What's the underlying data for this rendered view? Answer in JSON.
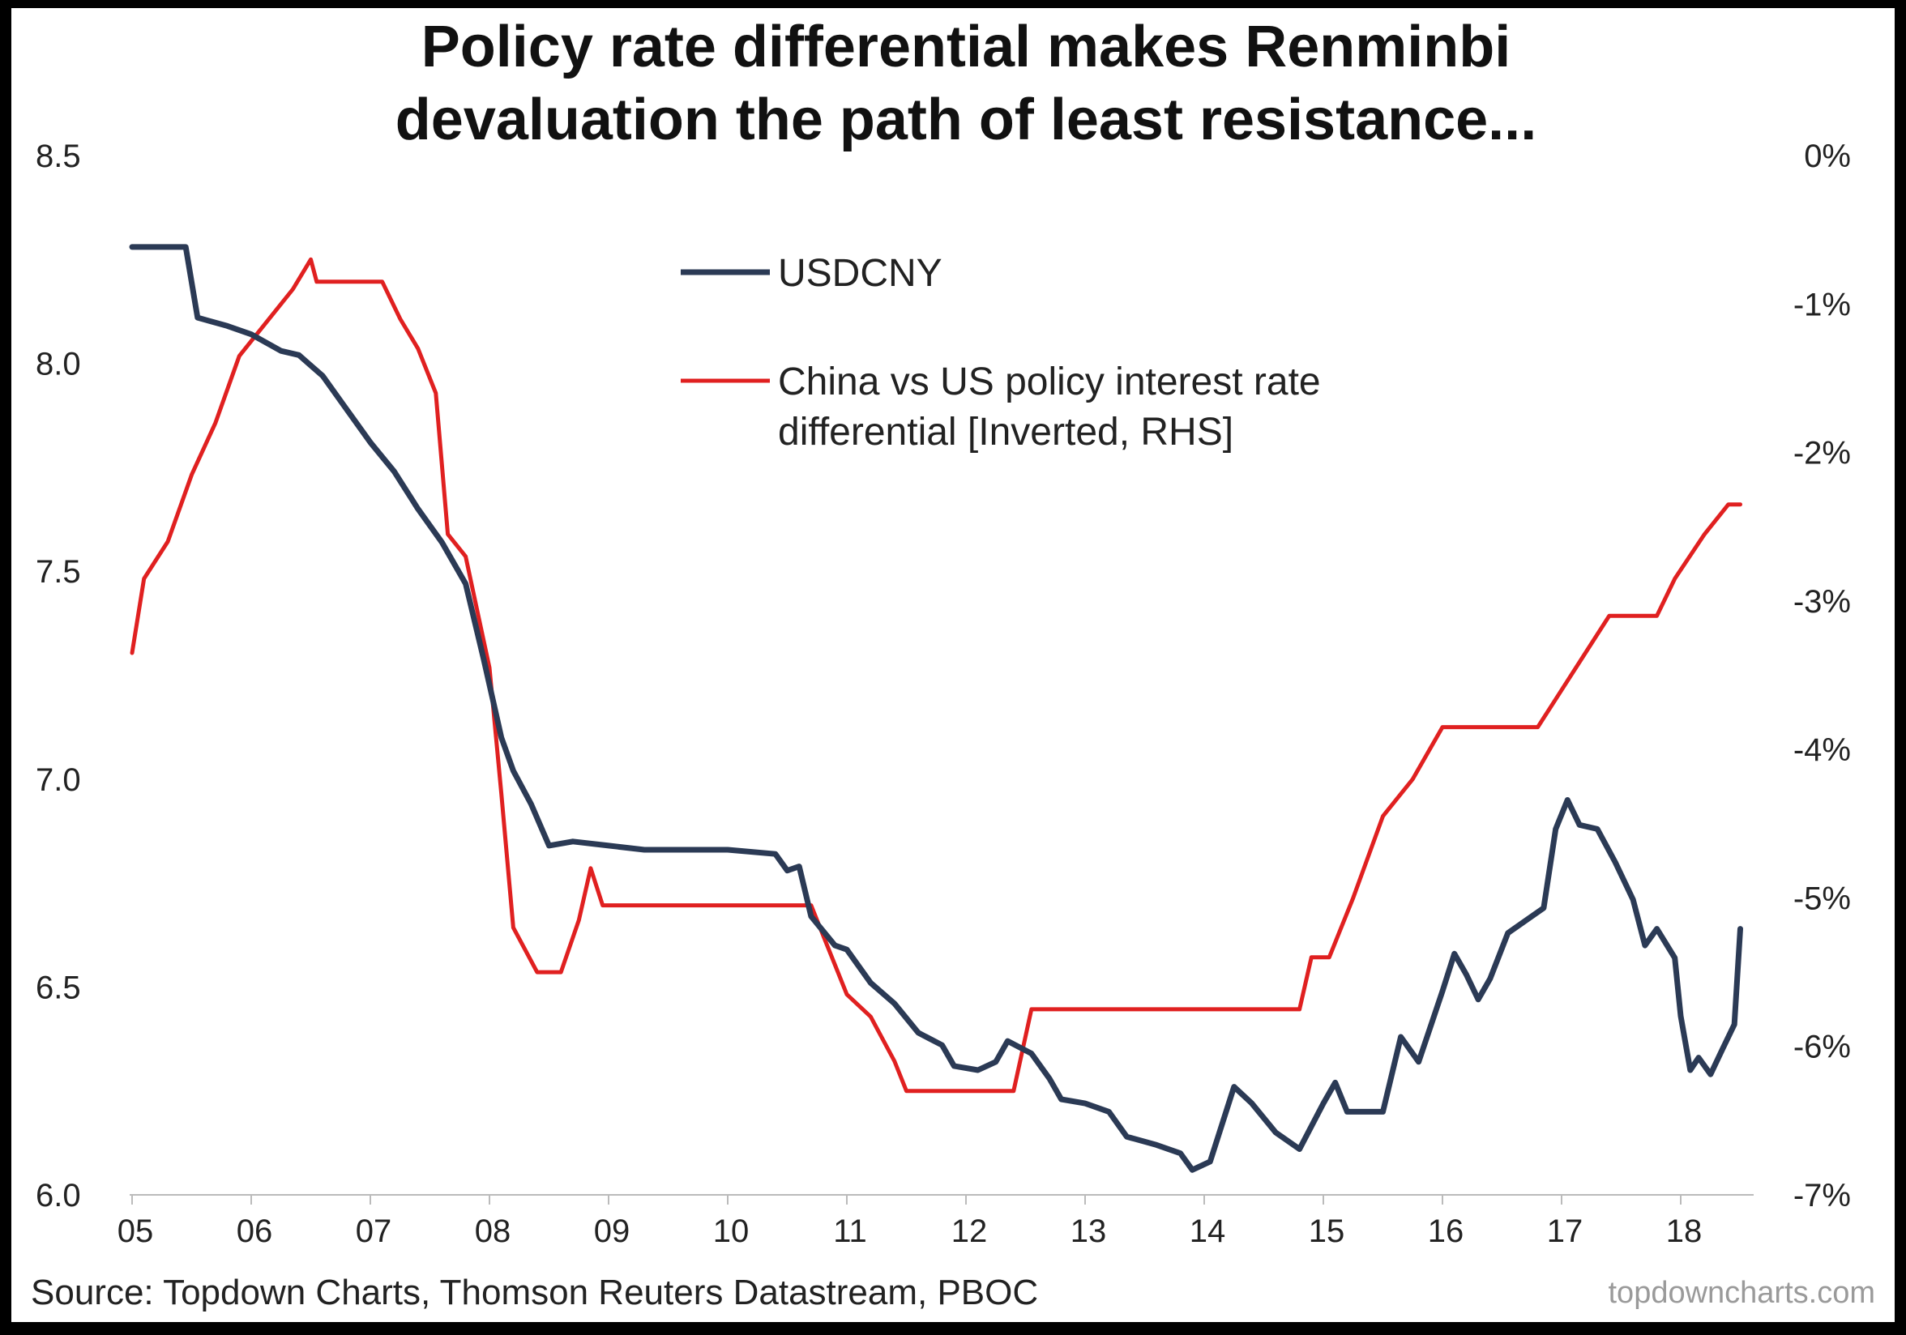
{
  "chart_data": {
    "type": "line",
    "title_lines": [
      "Policy rate differential makes Renminbi",
      "devaluation the path of least resistance..."
    ],
    "x_ticks": [
      "05",
      "06",
      "07",
      "08",
      "09",
      "10",
      "11",
      "12",
      "13",
      "14",
      "15",
      "16",
      "17",
      "18"
    ],
    "x_range": [
      2005,
      2018.55
    ],
    "y_left": {
      "range": [
        6.0,
        8.5
      ],
      "ticks": [
        "6.0",
        "6.5",
        "7.0",
        "7.5",
        "8.0",
        "8.5"
      ],
      "tick_values": [
        6.0,
        6.5,
        7.0,
        7.5,
        8.0,
        8.5
      ]
    },
    "y_right": {
      "range": [
        -7,
        0
      ],
      "inverted": true,
      "ticks": [
        "0%",
        "-1%",
        "-2%",
        "-3%",
        "-4%",
        "-5%",
        "-6%",
        "-7%"
      ],
      "tick_values": [
        0,
        -1,
        -2,
        -3,
        -4,
        -5,
        -6,
        -7
      ]
    },
    "legend_placement": "top-center",
    "grid": false,
    "series": [
      {
        "name": "USDCNY",
        "axis": "left",
        "color": "#2b3a55",
        "points": [
          [
            2005.0,
            8.28
          ],
          [
            2005.25,
            8.28
          ],
          [
            2005.45,
            8.28
          ],
          [
            2005.55,
            8.11
          ],
          [
            2005.8,
            8.09
          ],
          [
            2006.0,
            8.07
          ],
          [
            2006.25,
            8.03
          ],
          [
            2006.4,
            8.02
          ],
          [
            2006.6,
            7.97
          ],
          [
            2006.8,
            7.89
          ],
          [
            2007.0,
            7.81
          ],
          [
            2007.2,
            7.74
          ],
          [
            2007.4,
            7.65
          ],
          [
            2007.6,
            7.57
          ],
          [
            2007.8,
            7.47
          ],
          [
            2007.95,
            7.29
          ],
          [
            2008.1,
            7.1
          ],
          [
            2008.2,
            7.02
          ],
          [
            2008.35,
            6.94
          ],
          [
            2008.5,
            6.84
          ],
          [
            2008.7,
            6.85
          ],
          [
            2009.0,
            6.84
          ],
          [
            2009.3,
            6.83
          ],
          [
            2009.6,
            6.83
          ],
          [
            2010.0,
            6.83
          ],
          [
            2010.4,
            6.82
          ],
          [
            2010.5,
            6.78
          ],
          [
            2010.6,
            6.79
          ],
          [
            2010.7,
            6.67
          ],
          [
            2010.9,
            6.6
          ],
          [
            2011.0,
            6.59
          ],
          [
            2011.2,
            6.51
          ],
          [
            2011.4,
            6.46
          ],
          [
            2011.6,
            6.39
          ],
          [
            2011.8,
            6.36
          ],
          [
            2011.9,
            6.31
          ],
          [
            2012.1,
            6.3
          ],
          [
            2012.25,
            6.32
          ],
          [
            2012.35,
            6.37
          ],
          [
            2012.55,
            6.34
          ],
          [
            2012.7,
            6.28
          ],
          [
            2012.8,
            6.23
          ],
          [
            2013.0,
            6.22
          ],
          [
            2013.2,
            6.2
          ],
          [
            2013.35,
            6.14
          ],
          [
            2013.6,
            6.12
          ],
          [
            2013.8,
            6.1
          ],
          [
            2013.9,
            6.06
          ],
          [
            2014.05,
            6.08
          ],
          [
            2014.25,
            6.26
          ],
          [
            2014.4,
            6.22
          ],
          [
            2014.6,
            6.15
          ],
          [
            2014.8,
            6.11
          ],
          [
            2015.0,
            6.22
          ],
          [
            2015.1,
            6.27
          ],
          [
            2015.2,
            6.2
          ],
          [
            2015.5,
            6.2
          ],
          [
            2015.65,
            6.38
          ],
          [
            2015.8,
            6.32
          ],
          [
            2016.0,
            6.49
          ],
          [
            2016.1,
            6.58
          ],
          [
            2016.2,
            6.53
          ],
          [
            2016.3,
            6.47
          ],
          [
            2016.4,
            6.52
          ],
          [
            2016.55,
            6.63
          ],
          [
            2016.7,
            6.66
          ],
          [
            2016.85,
            6.69
          ],
          [
            2016.95,
            6.88
          ],
          [
            2017.05,
            6.95
          ],
          [
            2017.15,
            6.89
          ],
          [
            2017.3,
            6.88
          ],
          [
            2017.45,
            6.8
          ],
          [
            2017.6,
            6.71
          ],
          [
            2017.7,
            6.6
          ],
          [
            2017.8,
            6.64
          ],
          [
            2017.95,
            6.57
          ],
          [
            2018.0,
            6.43
          ],
          [
            2018.08,
            6.3
          ],
          [
            2018.15,
            6.33
          ],
          [
            2018.25,
            6.29
          ],
          [
            2018.35,
            6.35
          ],
          [
            2018.45,
            6.41
          ],
          [
            2018.5,
            6.64
          ]
        ]
      },
      {
        "name": "China vs US policy interest rate differential [Inverted, RHS]",
        "axis": "right",
        "color": "#e02020",
        "points": [
          [
            2005.0,
            -3.35
          ],
          [
            2005.1,
            -2.85
          ],
          [
            2005.3,
            -2.6
          ],
          [
            2005.5,
            -2.15
          ],
          [
            2005.7,
            -1.8
          ],
          [
            2005.9,
            -1.35
          ],
          [
            2006.0,
            -1.25
          ],
          [
            2006.15,
            -1.1
          ],
          [
            2006.35,
            -0.9
          ],
          [
            2006.5,
            -0.7
          ],
          [
            2006.55,
            -0.85
          ],
          [
            2006.8,
            -0.85
          ],
          [
            2007.1,
            -0.85
          ],
          [
            2007.25,
            -1.1
          ],
          [
            2007.4,
            -1.3
          ],
          [
            2007.55,
            -1.6
          ],
          [
            2007.65,
            -2.55
          ],
          [
            2007.8,
            -2.7
          ],
          [
            2008.0,
            -3.45
          ],
          [
            2008.1,
            -4.3
          ],
          [
            2008.2,
            -5.2
          ],
          [
            2008.4,
            -5.5
          ],
          [
            2008.6,
            -5.5
          ],
          [
            2008.75,
            -5.15
          ],
          [
            2008.85,
            -4.8
          ],
          [
            2008.95,
            -5.05
          ],
          [
            2009.2,
            -5.05
          ],
          [
            2009.7,
            -5.05
          ],
          [
            2010.3,
            -5.05
          ],
          [
            2010.7,
            -5.05
          ],
          [
            2010.85,
            -5.35
          ],
          [
            2011.0,
            -5.65
          ],
          [
            2011.2,
            -5.8
          ],
          [
            2011.4,
            -6.1
          ],
          [
            2011.5,
            -6.3
          ],
          [
            2011.8,
            -6.3
          ],
          [
            2012.1,
            -6.3
          ],
          [
            2012.4,
            -6.3
          ],
          [
            2012.55,
            -5.75
          ],
          [
            2012.8,
            -5.75
          ],
          [
            2013.2,
            -5.75
          ],
          [
            2013.8,
            -5.75
          ],
          [
            2014.4,
            -5.75
          ],
          [
            2014.8,
            -5.75
          ],
          [
            2014.9,
            -5.4
          ],
          [
            2015.05,
            -5.4
          ],
          [
            2015.25,
            -5.0
          ],
          [
            2015.5,
            -4.45
          ],
          [
            2015.75,
            -4.2
          ],
          [
            2016.0,
            -3.85
          ],
          [
            2016.4,
            -3.85
          ],
          [
            2016.8,
            -3.85
          ],
          [
            2017.0,
            -3.6
          ],
          [
            2017.2,
            -3.35
          ],
          [
            2017.4,
            -3.1
          ],
          [
            2017.8,
            -3.1
          ],
          [
            2017.95,
            -2.85
          ],
          [
            2018.2,
            -2.55
          ],
          [
            2018.4,
            -2.35
          ],
          [
            2018.5,
            -2.35
          ]
        ]
      }
    ],
    "source": "Source: Topdown Charts, Thomson Reuters Datastream, PBOC",
    "watermark": "topdowncharts.com"
  }
}
